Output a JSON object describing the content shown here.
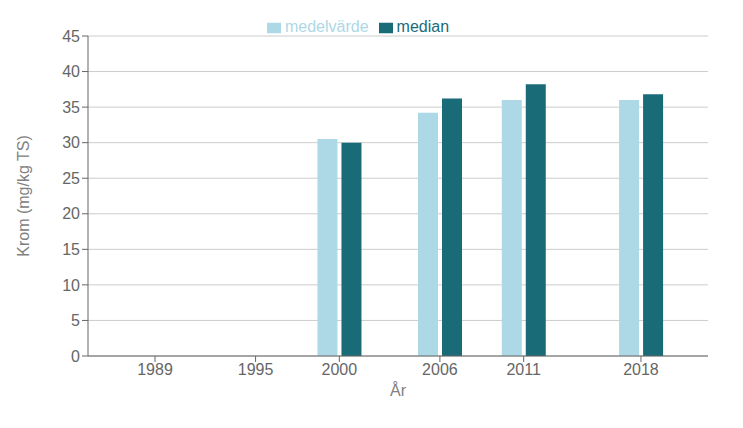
{
  "chart_data": {
    "type": "bar",
    "x": [
      1989,
      1995,
      2000,
      2006,
      2011,
      2018
    ],
    "series": [
      {
        "name": "medelvärde",
        "color": "#add8e6",
        "values": [
          0,
          0,
          30.5,
          34.2,
          36.0,
          36.0
        ]
      },
      {
        "name": "median",
        "color": "#1a6b78",
        "values": [
          0,
          0,
          30.0,
          36.2,
          38.2,
          36.8
        ]
      }
    ],
    "xlabel": "År",
    "ylabel": "Krom (mg/kg TS)",
    "xlim": [
      1985,
      2022
    ],
    "xticks": [
      1989,
      1995,
      2000,
      2006,
      2011,
      2018
    ],
    "ylim": [
      0,
      45
    ],
    "yticks": [
      0,
      5,
      10,
      15,
      20,
      25,
      30,
      35,
      40,
      45
    ],
    "grid": true,
    "legend": "top"
  }
}
